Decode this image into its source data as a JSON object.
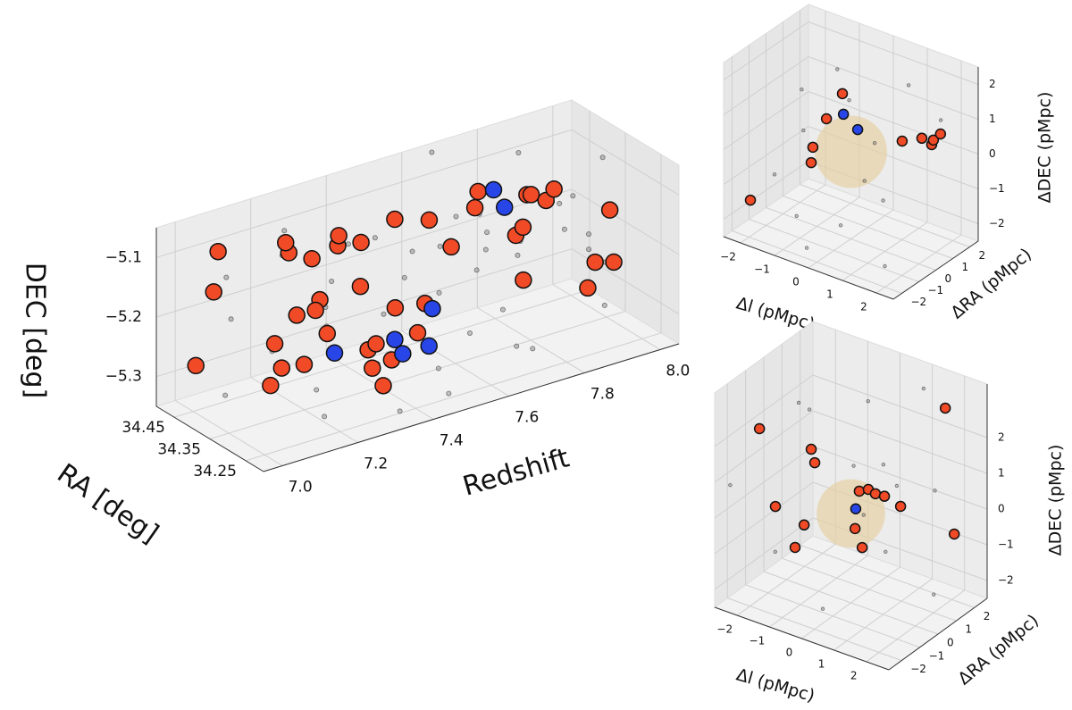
{
  "chart_data": [
    {
      "type": "scatter3d",
      "xlabel": "Redshift",
      "ylabel": "RA [deg]",
      "zlabel": "DEC [deg]",
      "xlim": [
        6.95,
        8.05
      ],
      "ylim": [
        34.2,
        34.5
      ],
      "zlim": [
        -5.35,
        -5.05
      ],
      "xticks": [
        {
          "value": 7,
          "label": "7.0"
        },
        7.2,
        7.4,
        7.6,
        7.8,
        {
          "value": 8,
          "label": "8.0"
        }
      ],
      "yticks": [
        34.25,
        34.35,
        34.45
      ],
      "zticks": [
        {
          "value": -5.3,
          "label": "−5.3"
        },
        {
          "value": -5.2,
          "label": "−5.2"
        },
        {
          "value": -5.1,
          "label": "−5.1"
        }
      ],
      "series": [
        {
          "color": "#8a8a8a",
          "alpha": 0.5,
          "x": [
            7.02,
            7.05,
            7.08,
            7.11,
            7.13,
            7.16,
            7.19,
            7.21,
            7.24,
            7.27,
            7.29,
            7.31,
            7.34,
            7.36,
            7.38,
            7.41,
            7.43,
            7.45,
            7.48,
            7.5,
            7.52,
            7.55,
            7.57,
            7.59,
            7.61,
            7.63,
            7.65,
            7.67,
            7.69,
            7.71,
            7.73,
            7.75,
            7.77,
            7.79,
            7.81,
            7.83,
            7.85,
            7.87,
            7.89,
            7.91,
            7.93,
            7.95,
            7.97,
            7.99,
            8.01,
            7.0,
            7.09,
            7.33,
            7.47,
            7.62
          ],
          "y": [
            34.25,
            34.41,
            34.31,
            34.46,
            34.22,
            34.37,
            34.28,
            34.44,
            34.33,
            34.48,
            34.24,
            34.39,
            34.3,
            34.45,
            34.26,
            34.35,
            34.47,
            34.21,
            34.4,
            34.29,
            34.43,
            34.34,
            34.23,
            34.46,
            34.32,
            34.38,
            34.27,
            34.49,
            34.36,
            34.25,
            34.42,
            34.31,
            34.47,
            34.28,
            34.39,
            34.22,
            34.44,
            34.33,
            34.48,
            34.26,
            34.37,
            34.3,
            34.45,
            34.35,
            34.41,
            34.36,
            34.2,
            34.22,
            34.26,
            34.2
          ],
          "z": [
            -5.18,
            -5.12,
            -5.27,
            -5.22,
            -5.3,
            -5.09,
            -5.15,
            -5.31,
            -5.21,
            -5.11,
            -5.25,
            -5.17,
            -5.07,
            -5.28,
            -5.13,
            -5.23,
            -5.16,
            -5.32,
            -5.1,
            -5.19,
            -5.26,
            -5.14,
            -5.08,
            -5.2,
            -5.29,
            -5.12,
            -5.24,
            -5.06,
            -5.18,
            -5.31,
            -5.15,
            -5.22,
            -5.27,
            -5.09,
            -5.2,
            -5.13,
            -5.25,
            -5.17,
            -5.1,
            -5.28,
            -5.14,
            -5.23,
            -5.19,
            -5.08,
            -5.26,
            -5.29,
            -5.24,
            -5.33,
            -5.3,
            -5.27
          ]
        },
        {
          "color": "#f04a26",
          "alpha": 1,
          "x": [
            6.96,
            6.96,
            7.0,
            7.14,
            7.16,
            7.22,
            7.26,
            7.31,
            7.35,
            7.43,
            7.54,
            7.57,
            7.66,
            7.68,
            7.78,
            7.81,
            7.84,
            7.88,
            7.99,
            7.97,
            8.01,
            7.96,
            7.78,
            7.32,
            7.26,
            7.18,
            7.22,
            7.27,
            7.35,
            7.39,
            7.15,
            7.14,
            7.19,
            7.12,
            7.38,
            7.39,
            7.45,
            7.5,
            7.51,
            7.45,
            7.76,
            7.76
          ],
          "y": [
            34.35,
            34.4,
            34.38,
            34.33,
            34.36,
            34.35,
            34.32,
            34.37,
            34.35,
            34.34,
            34.36,
            34.33,
            34.35,
            34.38,
            34.34,
            34.36,
            34.35,
            34.37,
            34.33,
            34.35,
            34.34,
            34.36,
            34.35,
            34.32,
            34.37,
            34.35,
            34.34,
            34.36,
            34.33,
            34.35,
            34.38,
            34.35,
            34.34,
            34.36,
            34.35,
            34.33,
            34.37,
            34.35,
            34.34,
            34.36,
            34.35,
            34.33
          ],
          "z": [
            -5.105,
            -5.247,
            -5.056,
            -5.067,
            -5.065,
            -5.1,
            -5.075,
            -5.086,
            -5.098,
            -5.071,
            -5.101,
            -5.141,
            -5.073,
            -5.115,
            -5.098,
            -5.111,
            -5.123,
            -5.119,
            -5.161,
            -5.252,
            -5.256,
            -5.297,
            -5.245,
            -5.155,
            -5.184,
            -5.187,
            -5.183,
            -5.239,
            -5.271,
            -5.276,
            -5.24,
            -5.268,
            -5.268,
            -5.297,
            -5.315,
            -5.339,
            -5.322,
            -5.279,
            -5.228,
            -5.231,
            -5.166,
            -5.145
          ]
        },
        {
          "color": "#2846e8",
          "alpha": 1,
          "x": [
            7.28,
            7.43,
            7.47,
            7.53,
            7.72,
            7.73,
            7.52
          ],
          "y": [
            34.35,
            34.34,
            34.36,
            34.35,
            34.37,
            34.35,
            34.33
          ],
          "z": [
            -5.27,
            -5.273,
            -5.312,
            -5.307,
            -5.089,
            -5.113,
            -5.235
          ]
        }
      ]
    },
    {
      "type": "scatter3d",
      "xlabel": "Δl (pMpc)",
      "ylabel": "ΔRA (pMpc)",
      "zlabel": "ΔDEC (pMpc)",
      "xlim": [
        -2.5,
        2.5
      ],
      "ylim": [
        -2.5,
        2.5
      ],
      "zlim": [
        -2.5,
        2.5
      ],
      "xticks": [
        {
          "value": -2,
          "label": "−2"
        },
        {
          "value": -1,
          "label": "−1"
        },
        0,
        1,
        2
      ],
      "yticks": [
        {
          "value": -2,
          "label": "−2"
        },
        {
          "value": -1,
          "label": "−1"
        },
        0,
        1,
        2
      ],
      "zticks": [
        {
          "value": -2,
          "label": "−2"
        },
        {
          "value": -1,
          "label": "−1"
        },
        0,
        1,
        2
      ],
      "sphere": {
        "radius": 1,
        "color": "#e6cfa2"
      },
      "series": [
        {
          "color": "#8a8a8a",
          "alpha": 0.5,
          "x": [
            -2.2,
            -1.8,
            -1.4,
            -1.0,
            -0.6,
            -0.3,
            0.1,
            0.4,
            0.8,
            1.2,
            1.5,
            1.9,
            2.2,
            -2.0,
            0.6
          ],
          "y": [
            1.5,
            0.8,
            2.0,
            -1.2,
            1.1,
            -2.0,
            0.6,
            -1.4,
            1.8,
            -0.5,
            2.2,
            -1.8,
            0.9,
            -0.5,
            0.2
          ],
          "z": [
            0.5,
            -0.3,
            1.2,
            -1.8,
            0.9,
            -2.2,
            -1.0,
            -1.5,
            1.6,
            -0.8,
            0.3,
            -2.0,
            1.4,
            -1.2,
            0.4
          ]
        },
        {
          "color": "#f04a26",
          "alpha": 1,
          "x": [
            -0.25,
            -0.72,
            -1.12,
            -1.17,
            -2.21,
            1.51,
            2.09,
            2.38,
            2.43,
            2.24
          ],
          "y": [
            0,
            0,
            0,
            0,
            -1.5,
            0,
            0,
            0,
            0,
            0.8
          ],
          "z": [
            1.58,
            0.69,
            -0.27,
            -0.73,
            -1.68,
            0.85,
            1.14,
            1.06,
            1.21,
            1.05
          ]
        },
        {
          "color": "#2846e8",
          "alpha": 1,
          "x": [
            -0.22,
            0.2
          ],
          "y": [
            0,
            0
          ],
          "z": [
            1.0,
            0.71
          ]
        }
      ]
    },
    {
      "type": "scatter3d",
      "xlabel": "Δl (pMpc)",
      "ylabel": "ΔRA (pMpc)",
      "zlabel": "ΔDEC (pMpc)",
      "xlim": [
        -2.7,
        2.7
      ],
      "ylim": [
        -2.7,
        2.7
      ],
      "zlim": [
        -2.5,
        3.5
      ],
      "xticks": [
        {
          "value": -2,
          "label": "−2"
        },
        {
          "value": -1,
          "label": "−1"
        },
        0,
        1,
        2
      ],
      "yticks": [
        {
          "value": -2,
          "label": "−2"
        },
        {
          "value": -1,
          "label": "−1"
        },
        0,
        1,
        2
      ],
      "zticks": [
        {
          "value": -2,
          "label": "−2"
        },
        {
          "value": -1,
          "label": "−1"
        },
        0,
        1,
        2
      ],
      "sphere": {
        "radius": 1,
        "color": "#e6cfa2"
      },
      "series": [
        {
          "color": "#8a8a8a",
          "alpha": 0.5,
          "x": [
            -2.3,
            -1.9,
            -1.5,
            -1.1,
            -0.7,
            -0.2,
            0.2,
            0.5,
            0.9,
            1.3,
            1.7,
            2.1,
            2.4,
            -2.5,
            0.0
          ],
          "y": [
            1.8,
            0.5,
            -1.5,
            2.1,
            -0.8,
            1.3,
            -1.9,
            0.9,
            2.4,
            -0.4,
            1.6,
            -1.2,
            0.3,
            -2.2,
            0.7
          ],
          "z": [
            1.5,
            2.3,
            -1.0,
            0.2,
            1.8,
            2.6,
            -1.9,
            1.2,
            2.9,
            -0.5,
            0.6,
            1.9,
            -1.6,
            0.8,
            -0.3
          ]
        },
        {
          "color": "#f04a26",
          "alpha": 1,
          "x": [
            -2.27,
            -1.23,
            -1.12,
            -2.34,
            -1.45,
            -1.73,
            0.13,
            0.35,
            0.26,
            0.54,
            0.76,
            1.04,
            1.54,
            2.08,
            2.64
          ],
          "y": [
            -1,
            0,
            0,
            0,
            0,
            0,
            0,
            0,
            0,
            0,
            0,
            0,
            0,
            1.5,
            1
          ],
          "z": [
            2.01,
            1.4,
            1.06,
            -0.56,
            -0.79,
            -1.51,
            -0.38,
            -0.84,
            0.71,
            0.85,
            0.8,
            0.82,
            0.7,
            3.07,
            -0.09
          ]
        },
        {
          "color": "#2846e8",
          "alpha": 1,
          "x": [
            0.15
          ],
          "y": [
            0
          ],
          "z": [
            0.18
          ]
        }
      ]
    }
  ]
}
